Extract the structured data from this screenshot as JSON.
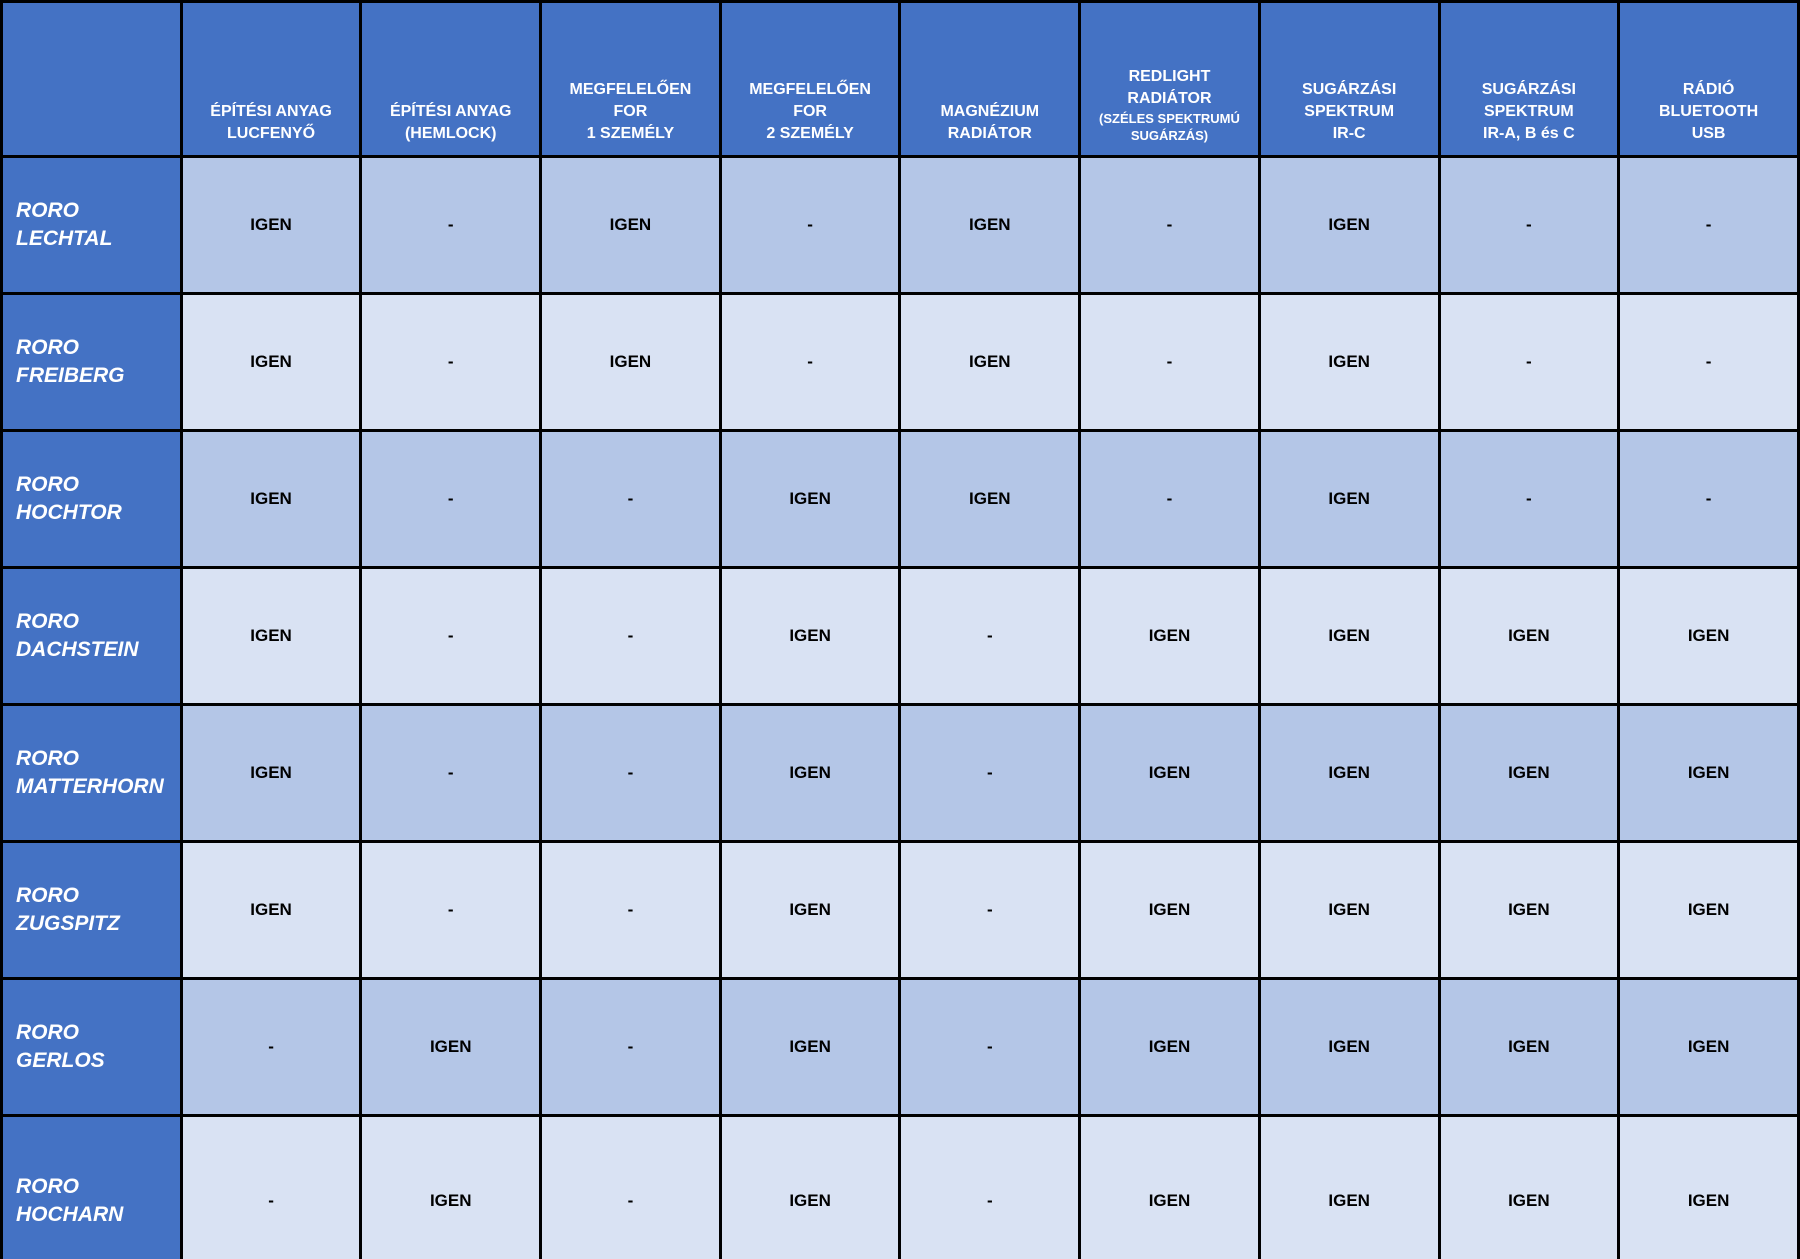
{
  "colors": {
    "header_bg": "#4472C4",
    "row_label_bg": "#4472C4",
    "row_dark_bg": "#B4C6E7",
    "row_light_bg": "#D9E2F3",
    "border": "#000000",
    "header_text": "#FFFFFF",
    "cell_text": "#000000"
  },
  "table": {
    "corner_label": "",
    "columns": [
      {
        "label": "ÉPÍTÉSI ANYAG\nLUCFENYŐ"
      },
      {
        "label": "ÉPÍTÉSI ANYAG\n(HEMLOCK)"
      },
      {
        "label": "MEGFELELŐEN\nFOR\n1 SZEMÉLY"
      },
      {
        "label": "MEGFELELŐEN\nFOR\n2 SZEMÉLY"
      },
      {
        "label": "MAGNÉZIUM\nRADIÁTOR"
      },
      {
        "label": "REDLIGHT\nRADIÁTOR",
        "sublabel": "(SZÉLES SPEKTRUMÚ\nSUGÁRZÁS)"
      },
      {
        "label": "SUGÁRZÁSI\nSPEKTRUM\nIR-C"
      },
      {
        "label": "SUGÁRZÁSI\nSPEKTRUM\nIR-A, B és C"
      },
      {
        "label": "RÁDIÓ\nBLUETOOTH\nUSB"
      }
    ],
    "rows": [
      {
        "label": "RORO\nLECHTAL",
        "values": [
          "IGEN",
          "-",
          "IGEN",
          "-",
          "IGEN",
          "-",
          "IGEN",
          "-",
          "-"
        ]
      },
      {
        "label": "RORO\nFREIBERG",
        "values": [
          "IGEN",
          "-",
          "IGEN",
          "-",
          "IGEN",
          "-",
          "IGEN",
          "-",
          "-"
        ]
      },
      {
        "label": "RORO\nHOCHTOR",
        "values": [
          "IGEN",
          "-",
          "-",
          "IGEN",
          "IGEN",
          "-",
          "IGEN",
          "-",
          "-"
        ]
      },
      {
        "label": "RORO\nDACHSTEIN",
        "values": [
          "IGEN",
          "-",
          "-",
          "IGEN",
          "-",
          "IGEN",
          "IGEN",
          "IGEN",
          "IGEN"
        ]
      },
      {
        "label": "RORO\nMATTERHORN",
        "values": [
          "IGEN",
          "-",
          "-",
          "IGEN",
          "-",
          "IGEN",
          "IGEN",
          "IGEN",
          "IGEN"
        ]
      },
      {
        "label": "RORO\nZUGSPITZ",
        "values": [
          "IGEN",
          "-",
          "-",
          "IGEN",
          "-",
          "IGEN",
          "IGEN",
          "IGEN",
          "IGEN"
        ]
      },
      {
        "label": "RORO\nGERLOS",
        "values": [
          "-",
          "IGEN",
          "-",
          "IGEN",
          "-",
          "IGEN",
          "IGEN",
          "IGEN",
          "IGEN"
        ]
      },
      {
        "label": "RORO\nHOCHARN",
        "values": [
          "-",
          "IGEN",
          "-",
          "IGEN",
          "-",
          "IGEN",
          "IGEN",
          "IGEN",
          "IGEN"
        ]
      }
    ]
  }
}
